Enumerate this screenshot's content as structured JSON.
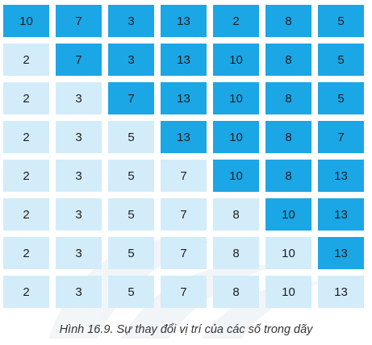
{
  "figure": {
    "caption": "Hình 16.9. Sự thay đổi vị trí của các số trong dãy",
    "colors": {
      "unsorted": "#1ba6e6",
      "sorted": "#d3ecf9",
      "text": "#1f1f1f"
    },
    "rows": [
      {
        "values": [
          "10",
          "7",
          "3",
          "13",
          "2",
          "8",
          "5"
        ],
        "sorted_count": 0
      },
      {
        "values": [
          "2",
          "7",
          "3",
          "13",
          "10",
          "8",
          "5"
        ],
        "sorted_count": 1
      },
      {
        "values": [
          "2",
          "3",
          "7",
          "13",
          "10",
          "8",
          "5"
        ],
        "sorted_count": 2
      },
      {
        "values": [
          "2",
          "3",
          "5",
          "13",
          "10",
          "8",
          "7"
        ],
        "sorted_count": 3
      },
      {
        "values": [
          "2",
          "3",
          "5",
          "7",
          "10",
          "8",
          "13"
        ],
        "sorted_count": 4
      },
      {
        "values": [
          "2",
          "3",
          "5",
          "7",
          "8",
          "10",
          "13"
        ],
        "sorted_count": 5
      },
      {
        "values": [
          "2",
          "3",
          "5",
          "7",
          "8",
          "10",
          "13"
        ],
        "sorted_count": 6
      },
      {
        "values": [
          "2",
          "3",
          "5",
          "7",
          "8",
          "10",
          "13"
        ],
        "sorted_count": 7
      }
    ]
  }
}
